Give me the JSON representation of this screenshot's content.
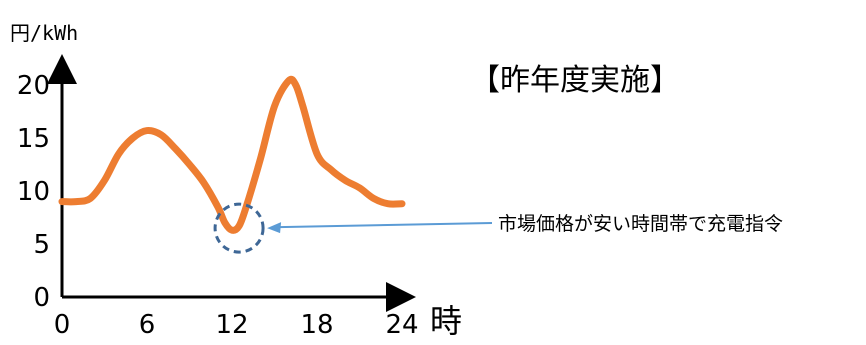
{
  "chart_data": {
    "type": "line",
    "ylabel": "円/kWh",
    "xlabel": "時",
    "title": "【昨年度実施】",
    "x_ticks": [
      "0",
      "6",
      "12",
      "18",
      "24"
    ],
    "y_ticks": [
      "0",
      "5",
      "10",
      "15",
      "20"
    ],
    "xlim": [
      0,
      24
    ],
    "ylim": [
      0,
      20
    ],
    "series": [
      {
        "color": "#ED7D31",
        "x": [
          0,
          1,
          2,
          3,
          4,
          5,
          6,
          7,
          8,
          9,
          10,
          11,
          11.5,
          12,
          12.5,
          13,
          14,
          15,
          16,
          16.5,
          17,
          18,
          19,
          20,
          21,
          22,
          23,
          24
        ],
        "y": [
          9,
          9,
          9.3,
          11,
          13.5,
          15,
          15.7,
          15.3,
          14,
          12.5,
          10.8,
          8.5,
          7,
          6.3,
          6.7,
          8.5,
          13,
          18,
          20.4,
          20,
          18,
          13.5,
          12,
          11,
          10.3,
          9.3,
          8.8,
          8.8
        ]
      }
    ],
    "annotation": {
      "text": "市場価格が安い時間帯で充電指令",
      "target_x": 12.5,
      "target_y": 6.5
    },
    "grid": false
  }
}
